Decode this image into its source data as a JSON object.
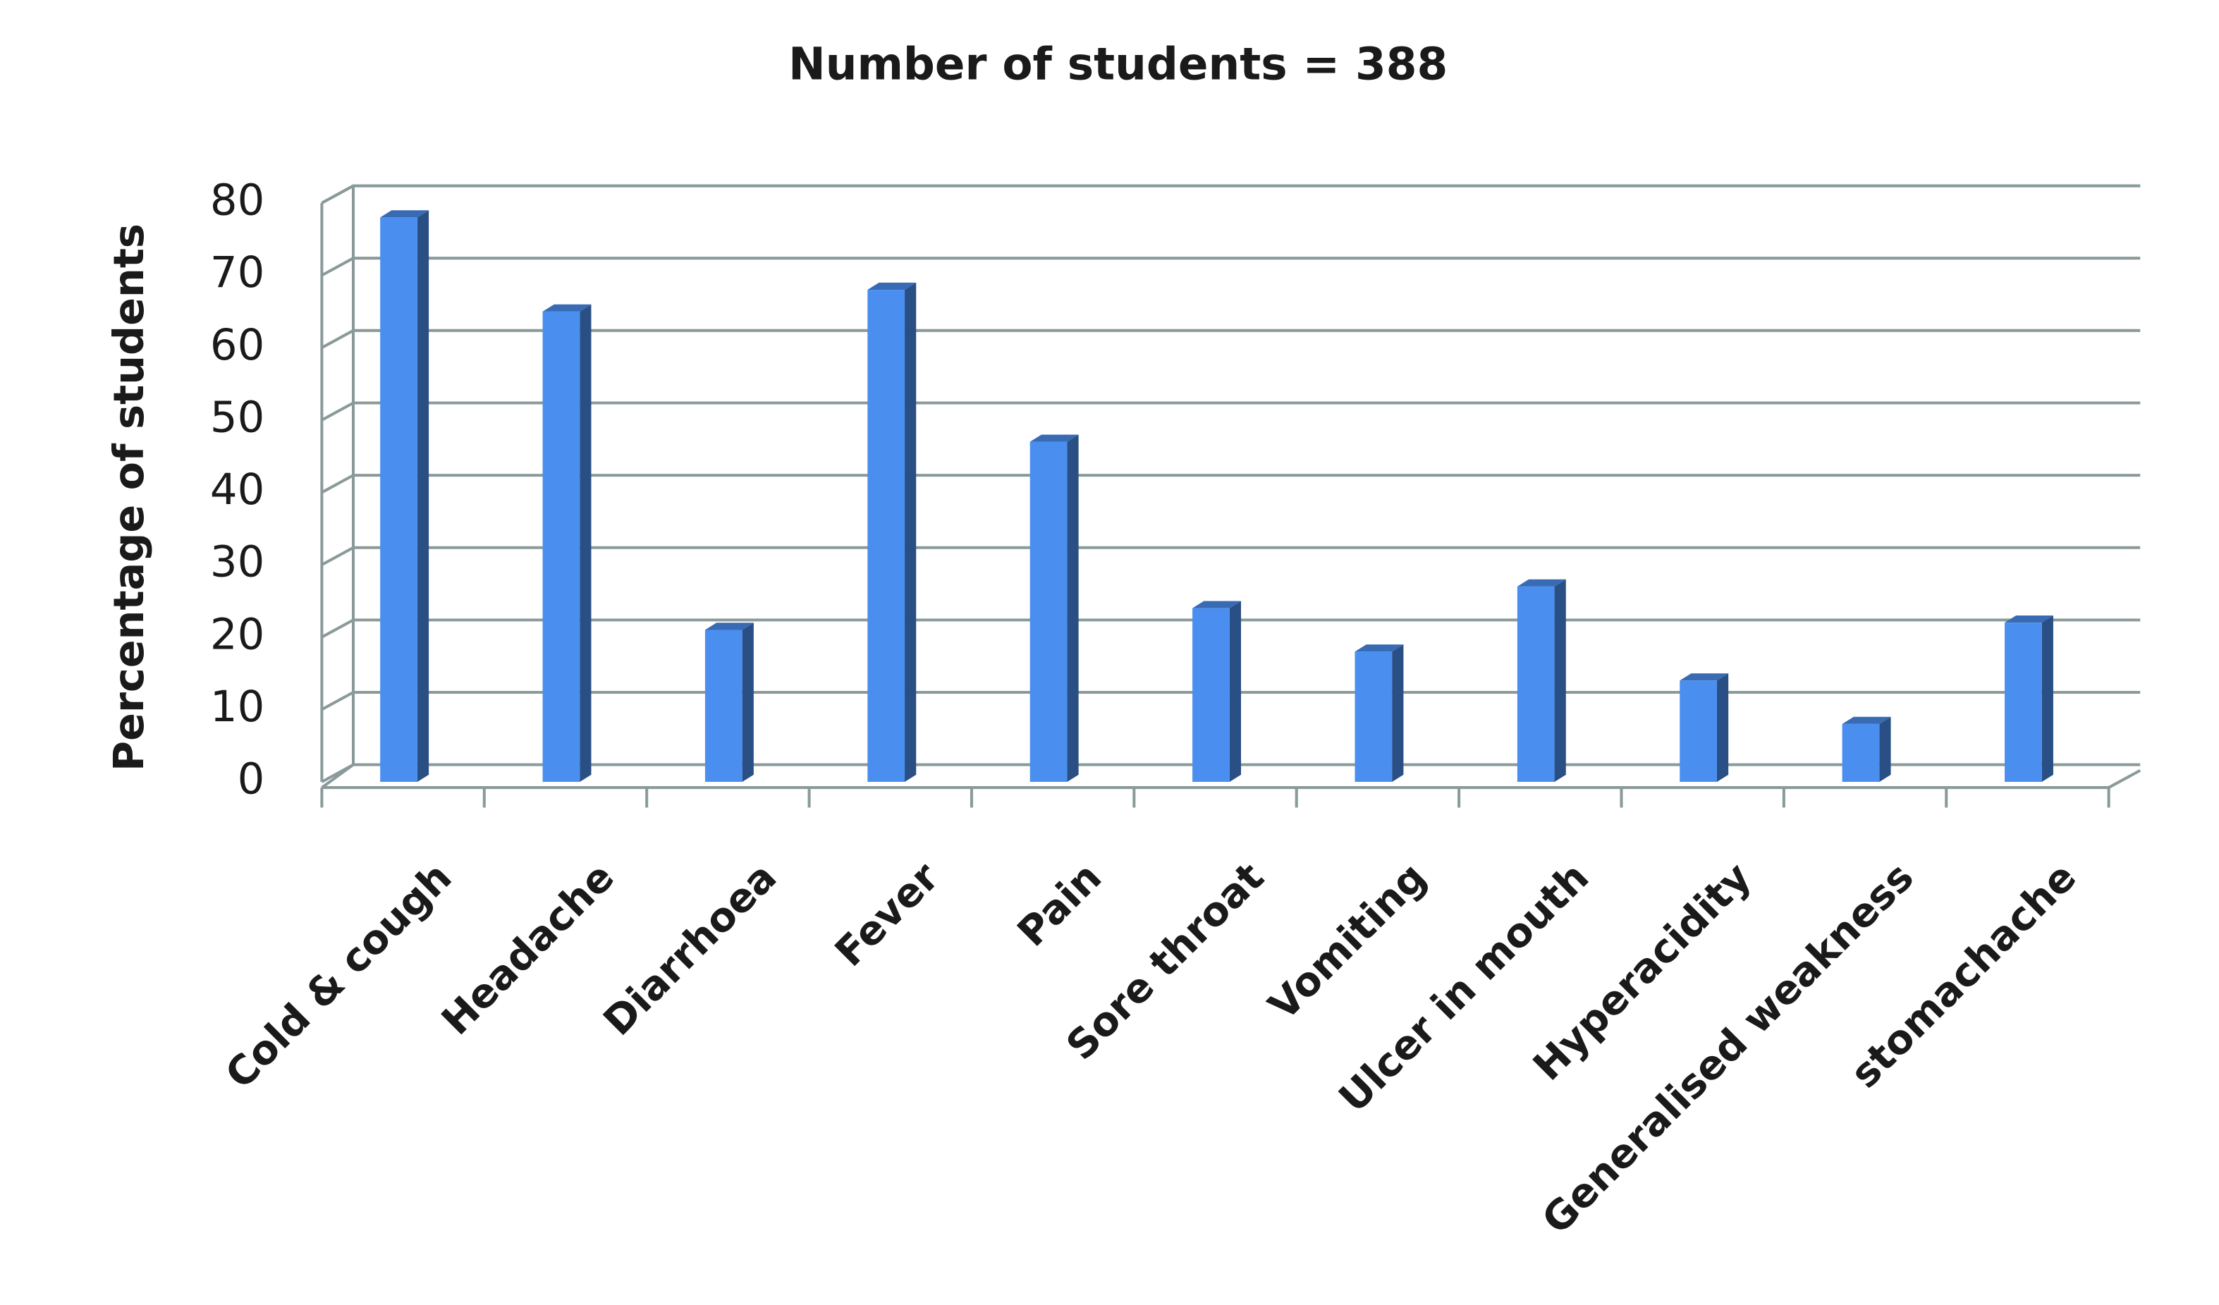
{
  "chart_data": {
    "type": "bar3d",
    "title": "Number of students = 388",
    "y_label": "Percentage of students",
    "categories": [
      "Cold & cough",
      "Headache",
      "Diarrhoea",
      "Fever",
      "Pain",
      "Sore throat",
      "Vomiting",
      "Ulcer in mouth",
      "Hyperacidity",
      "Generalised weakness",
      "stomachache"
    ],
    "values": [
      78,
      65,
      21,
      68,
      47,
      24,
      18,
      27,
      14,
      8,
      22
    ],
    "color": "#4a8ff0",
    "ylim": [
      0,
      80
    ],
    "yticks": [
      0,
      10,
      20,
      30,
      40,
      50,
      60,
      70,
      80
    ],
    "grid": true
  }
}
